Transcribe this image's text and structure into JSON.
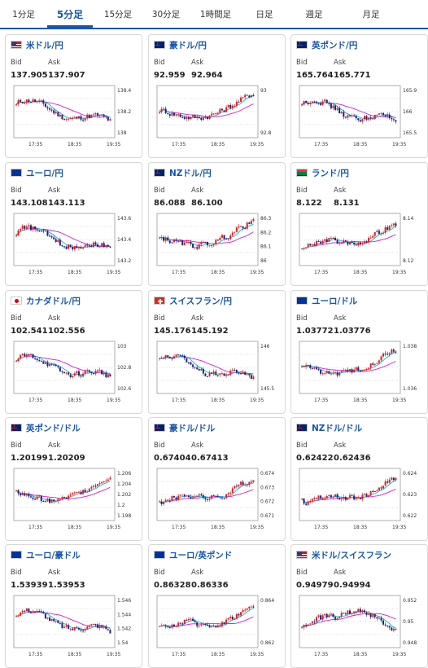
{
  "tabs": [
    {
      "label": "1分足",
      "active": false
    },
    {
      "label": "5分足",
      "active": true
    },
    {
      "label": "15分足",
      "active": false
    },
    {
      "label": "30分足",
      "active": false
    },
    {
      "label": "1時間足",
      "active": false
    },
    {
      "label": "日足",
      "active": false
    },
    {
      "label": "週足",
      "active": false
    },
    {
      "label": "月足",
      "active": false
    }
  ],
  "labels": {
    "bid": "Bid",
    "ask": "Ask"
  },
  "colors": {
    "link": "#1a56a8",
    "up": "#e02020",
    "down": "#1a237e",
    "ma_long": "#d020d0",
    "ma_short": "#20b0c8"
  },
  "x_ticks": [
    "17:35",
    "18:35",
    "19:35"
  ],
  "cards": [
    {
      "pair": "米ドル/円",
      "flag": "us-jp-flag-icon",
      "bid": "137.905",
      "ask": "137.907",
      "y_ticks": [
        "138.4",
        "138.2",
        "138"
      ],
      "trend": "down"
    },
    {
      "pair": "豪ドル/円",
      "flag": "au-jp-flag-icon",
      "bid": "92.959",
      "ask": "92.964",
      "y_ticks": [
        "93",
        "92.8"
      ],
      "trend": "up-down-up"
    },
    {
      "pair": "英ポンド/円",
      "flag": "gb-jp-flag-icon",
      "bid": "165.764",
      "ask": "165.771",
      "y_ticks": [
        "165.9",
        "166",
        "165.5"
      ],
      "trend": "down"
    },
    {
      "pair": "ユーロ/円",
      "flag": "eu-jp-flag-icon",
      "bid": "143.108",
      "ask": "143.113",
      "y_ticks": [
        "143.6",
        "143.4",
        "143.2"
      ],
      "trend": "down"
    },
    {
      "pair": "NZドル/円",
      "flag": "nz-jp-flag-icon",
      "bid": "86.088",
      "ask": "86.100",
      "y_ticks": [
        "86.3",
        "86.2",
        "86.1",
        "86"
      ],
      "trend": "up-down-up"
    },
    {
      "pair": "ランド/円",
      "flag": "za-jp-flag-icon",
      "bid": "8.122",
      "ask": "8.131",
      "y_ticks": [
        "8.14",
        "8.12"
      ],
      "trend": "up"
    },
    {
      "pair": "カナダドル/円",
      "flag": "ca-jp-flag-icon",
      "bid": "102.541",
      "ask": "102.556",
      "y_ticks": [
        "103",
        "102.8",
        "102.6"
      ],
      "trend": "down"
    },
    {
      "pair": "スイスフラン/円",
      "flag": "ch-jp-flag-icon",
      "bid": "145.176",
      "ask": "145.192",
      "y_ticks": [
        "146",
        "145.5"
      ],
      "trend": "down"
    },
    {
      "pair": "ユーロ/ドル",
      "flag": "eu-us-flag-icon",
      "bid": "1.03772",
      "ask": "1.03776",
      "y_ticks": [
        "1.038",
        "1.036"
      ],
      "trend": "up-down-up"
    },
    {
      "pair": "英ポンド/ドル",
      "flag": "gb-us-flag-icon",
      "bid": "1.20199",
      "ask": "1.20209",
      "y_ticks": [
        "1.206",
        "1.204",
        "1.202",
        "1.2",
        "1.198"
      ],
      "trend": "up-down-up"
    },
    {
      "pair": "豪ドル/ドル",
      "flag": "au-us-flag-icon",
      "bid": "0.67404",
      "ask": "0.67413",
      "y_ticks": [
        "0.674",
        "0.673",
        "0.672",
        "0.671"
      ],
      "trend": "up"
    },
    {
      "pair": "NZドル/ドル",
      "flag": "nz-us-flag-icon",
      "bid": "0.62422",
      "ask": "0.62436",
      "y_ticks": [
        "0.624",
        "0.623",
        "0.622"
      ],
      "trend": "up"
    },
    {
      "pair": "ユーロ/豪ドル",
      "flag": "eu-au-flag-icon",
      "bid": "1.53939",
      "ask": "1.53953",
      "y_ticks": [
        "1.546",
        "1.544",
        "1.542",
        "1.54"
      ],
      "trend": "down"
    },
    {
      "pair": "ユーロ/英ポンド",
      "flag": "eu-gb-flag-icon",
      "bid": "0.86328",
      "ask": "0.86336",
      "y_ticks": [
        "0.864",
        "0.862"
      ],
      "trend": "up"
    },
    {
      "pair": "米ドル/スイスフラン",
      "flag": "us-ch-flag-icon",
      "bid": "0.94979",
      "ask": "0.94994",
      "y_ticks": [
        "0.952",
        "0.95",
        "0.948"
      ],
      "trend": "up-down"
    }
  ]
}
